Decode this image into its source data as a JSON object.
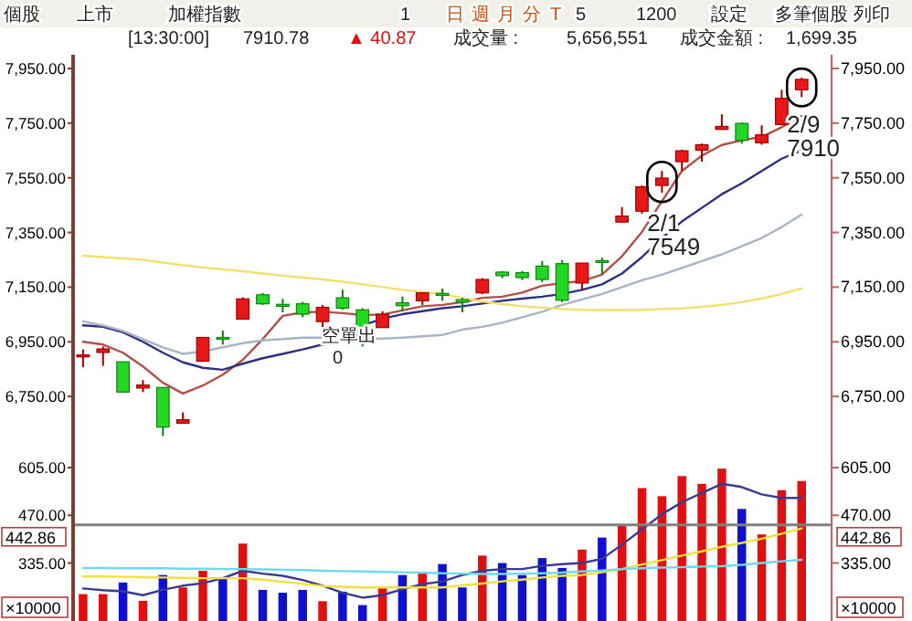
{
  "chart_data": [
    {
      "type": "candlestick",
      "categories": [
        null,
        null,
        null,
        null,
        null,
        null,
        null,
        null,
        null,
        null,
        null,
        null,
        null,
        null,
        null,
        null,
        null,
        null,
        null,
        null,
        null,
        null,
        null,
        null,
        null,
        null,
        null,
        null,
        null,
        null,
        null,
        null,
        null,
        null,
        null,
        null,
        null
      ],
      "ohlc": [
        [
          6895,
          6922,
          6857,
          6902
        ],
        [
          6911,
          6933,
          6862,
          6924
        ],
        [
          6877,
          6877,
          6766,
          6766
        ],
        [
          6781,
          6810,
          6766,
          6792
        ],
        [
          6783,
          6783,
          6605,
          6638
        ],
        [
          6652,
          6692,
          6652,
          6665
        ],
        [
          6879,
          6966,
          6879,
          6966
        ],
        [
          6966,
          6991,
          6940,
          6960
        ],
        [
          7033,
          7113,
          7033,
          7107
        ],
        [
          7122,
          7129,
          7085,
          7089
        ],
        [
          7087,
          7107,
          7058,
          7080
        ],
        [
          7089,
          7096,
          7040,
          7051
        ],
        [
          7024,
          7085,
          6995,
          7076
        ],
        [
          7111,
          7140,
          7067,
          7073
        ],
        [
          7067,
          7073,
          6933,
          6951
        ],
        [
          7002,
          7062,
          7002,
          7051
        ],
        [
          7093,
          7116,
          7062,
          7082
        ],
        [
          7100,
          7129,
          7085,
          7129
        ],
        [
          7127,
          7145,
          7100,
          7120
        ],
        [
          7104,
          7111,
          7058,
          7095
        ],
        [
          7129,
          7183,
          7124,
          7178
        ],
        [
          7205,
          7209,
          7183,
          7192
        ],
        [
          7203,
          7209,
          7176,
          7185
        ],
        [
          7227,
          7245,
          7169,
          7178
        ],
        [
          7236,
          7249,
          7095,
          7102
        ],
        [
          7165,
          7238,
          7138,
          7238
        ],
        [
          7247,
          7258,
          7196,
          7243
        ],
        [
          7388,
          7443,
          7388,
          7410
        ],
        [
          7428,
          7522,
          7419,
          7517
        ],
        [
          7522,
          7575,
          7495,
          7549
        ],
        [
          7609,
          7653,
          7575,
          7649
        ],
        [
          7651,
          7675,
          7609,
          7671
        ],
        [
          7727,
          7782,
          7727,
          7738
        ],
        [
          7749,
          7753,
          7675,
          7687
        ],
        [
          7678,
          7742,
          7671,
          7707
        ],
        [
          7745,
          7872,
          7742,
          7841
        ],
        [
          7872,
          7916,
          7845,
          7910
        ]
      ],
      "series": [
        {
          "type": "line",
          "color": "#b05048",
          "values": [
            6950,
            6940,
            6910,
            6860,
            6800,
            6761,
            6790,
            6830,
            6884,
            6960,
            7045,
            7058,
            7060,
            7055,
            7048,
            7050,
            7065,
            7080,
            7085,
            7095,
            7111,
            7115,
            7130,
            7155,
            7165,
            7172,
            7196,
            7263,
            7352,
            7464,
            7575,
            7631,
            7670,
            7687,
            7700,
            7735,
            7776
          ]
        },
        {
          "type": "line",
          "color": "#303080",
          "values": [
            7010,
            7005,
            6985,
            6950,
            6910,
            6875,
            6855,
            6848,
            6870,
            6890,
            6906,
            6922,
            6940,
            6960,
            7010,
            7035,
            7051,
            7062,
            7073,
            7080,
            7090,
            7100,
            7108,
            7115,
            7125,
            7140,
            7160,
            7200,
            7260,
            7330,
            7390,
            7440,
            7490,
            7530,
            7575,
            7620,
            7650
          ]
        },
        {
          "type": "line",
          "color": "#a8b4c4",
          "values": [
            7025,
            7010,
            6990,
            6960,
            6930,
            6906,
            6915,
            6930,
            6945,
            6955,
            6960,
            6965,
            6965,
            6962,
            6960,
            6962,
            6965,
            6970,
            6975,
            6995,
            7005,
            7020,
            7040,
            7060,
            7085,
            7105,
            7125,
            7150,
            7175,
            7195,
            7220,
            7245,
            7270,
            7300,
            7330,
            7370,
            7415
          ]
        },
        {
          "type": "line",
          "color": "#f0e070",
          "values": [
            7265,
            7260,
            7255,
            7250,
            7240,
            7230,
            7222,
            7215,
            7208,
            7200,
            7192,
            7185,
            7178,
            7170,
            7160,
            7150,
            7140,
            7132,
            7125,
            7110,
            7098,
            7088,
            7080,
            7075,
            7070,
            7067,
            7066,
            7066,
            7067,
            7070,
            7072,
            7078,
            7085,
            7095,
            7108,
            7125,
            7145
          ]
        }
      ],
      "ylim": [
        6530,
        8000
      ],
      "yticks": [
        {
          "value": 6750,
          "label": "6,750.00"
        },
        {
          "value": 6950,
          "label": "6,950.00"
        },
        {
          "value": 7150,
          "label": "7,150.00"
        },
        {
          "value": 7350,
          "label": "7,350.00"
        },
        {
          "value": 7550,
          "label": "7,550.00"
        },
        {
          "value": 7750,
          "label": "7,750.00"
        },
        {
          "value": 7950,
          "label": "7,950.00"
        }
      ],
      "y2lim": [
        6530,
        8000
      ],
      "y2ticks": [
        {
          "value": 6750,
          "label": "6,750.00"
        },
        {
          "value": 6950,
          "label": "6,950.00"
        },
        {
          "value": 7150,
          "label": "7,150.00"
        },
        {
          "value": 7350,
          "label": "7,350.00"
        },
        {
          "value": 7550,
          "label": "7,550.00"
        },
        {
          "value": 7750,
          "label": "7,750.00"
        },
        {
          "value": 7950,
          "label": "7,950.00"
        }
      ],
      "annotations": [
        "個股",
        "上市",
        "加權指數",
        "1",
        "日",
        "週",
        "月",
        "分",
        "T",
        "5",
        "1200",
        "設定",
        "多筆個股",
        "列印",
        "[13:30:00]",
        "7910.78",
        "▲ 40.87",
        "成交量 :",
        "5,656,551",
        "成交金額 :",
        "1,699.35",
        "空單出",
        "0",
        {
          "text": "2/1\n7549",
          "y": 7549
        },
        {
          "text": "2/9\n7910",
          "y": 7910
        }
      ]
    },
    {
      "type": "bar",
      "categories": [
        null,
        null,
        null,
        null,
        null,
        null,
        null,
        null,
        null,
        null,
        null,
        null,
        null,
        null,
        null,
        null,
        null,
        null,
        null,
        null,
        null,
        null,
        null,
        null,
        null,
        null,
        null,
        null,
        null,
        null,
        null,
        null,
        null,
        null,
        null,
        null,
        null
      ],
      "series": [
        {
          "type": "bar",
          "colors": [
            "#e01010",
            "#e01010",
            "#1010d0",
            "#e01010",
            "#1010d0",
            "#e01010",
            "#e01010",
            "#1010d0",
            "#e01010",
            "#1010d0",
            "#1010d0",
            "#1010d0",
            "#e01010",
            "#1010d0",
            "#1010d0",
            "#e01010",
            "#1010d0",
            "#e01010",
            "#1010d0",
            "#1010d0",
            "#e01010",
            "#1010d0",
            "#1010d0",
            "#1010d0",
            "#1010d0",
            "#e01010",
            "#1010d0",
            "#e01010",
            "#e01010",
            "#e01010",
            "#e01010",
            "#e01010",
            "#e01010",
            "#1010d0",
            "#e01010",
            "#e01010",
            "#e01010"
          ],
          "values": [
            247,
            247,
            280,
            228,
            301,
            266,
            313,
            292,
            390,
            259,
            251,
            259,
            227,
            254,
            216,
            266,
            301,
            306,
            332,
            266,
            356,
            335,
            301,
            349,
            321,
            373,
            407,
            443,
            547,
            524,
            581,
            559,
            602,
            488,
            416,
            541,
            567
          ]
        },
        {
          "type": "line",
          "color": "#3a3a90",
          "values": [
            263,
            258,
            255,
            244,
            259,
            271,
            278,
            292,
            313,
            305,
            299,
            287,
            271,
            251,
            237,
            244,
            261,
            275,
            283,
            301,
            313,
            318,
            318,
            327,
            332,
            335,
            347,
            387,
            430,
            473,
            507,
            533,
            559,
            550,
            529,
            519,
            519
          ]
        },
        {
          "type": "line",
          "color": "#f0e040",
          "values": [
            297,
            297,
            296,
            295,
            294,
            293,
            292,
            292,
            292,
            288,
            282,
            276,
            270,
            268,
            266,
            266,
            266,
            266,
            266,
            272,
            277,
            283,
            288,
            294,
            299,
            301,
            309,
            318,
            331,
            343,
            356,
            368,
            381,
            392,
            404,
            418,
            433
          ]
        },
        {
          "type": "line",
          "color": "#70d8e8",
          "values": [
            321,
            321,
            320,
            320,
            320,
            319,
            319,
            318,
            318,
            317,
            316,
            315,
            313,
            312,
            311,
            310,
            309,
            308,
            306,
            305,
            304,
            304,
            305,
            306,
            308,
            311,
            314,
            318,
            320,
            322,
            323,
            325,
            326,
            330,
            335,
            340,
            344
          ]
        }
      ],
      "ylim": [
        171,
        636
      ],
      "yticks": [
        {
          "value": 335,
          "label": "335.00"
        },
        {
          "value": 470,
          "label": "470.00"
        },
        {
          "value": 605,
          "label": "605.00"
        }
      ],
      "y2lim": [
        171,
        636
      ],
      "y2ticks": [
        {
          "value": 335,
          "label": "335.00"
        },
        {
          "value": 470,
          "label": "470.00"
        },
        {
          "value": 605,
          "label": "605.00"
        }
      ],
      "ref_lines": [
        {
          "axis": "y",
          "value": 442.86,
          "label": "442.86",
          "color": "#808080"
        }
      ],
      "annotations": [
        "×10000"
      ]
    }
  ]
}
